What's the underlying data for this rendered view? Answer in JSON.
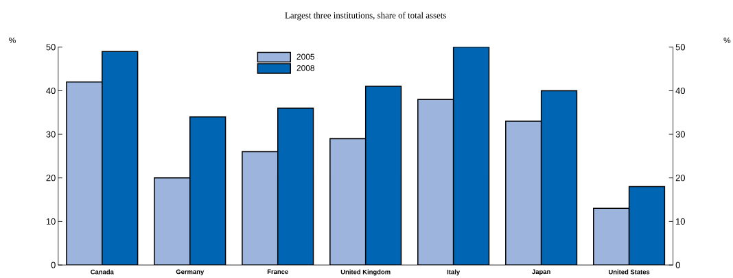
{
  "chart_data": {
    "type": "bar",
    "subtitle": "Largest three institutions, share of total assets",
    "ylabel": "%",
    "y2label": "%",
    "categories": [
      "Canada",
      "Germany",
      "France",
      "United Kingdom",
      "Italy",
      "Japan",
      "United States"
    ],
    "series": [
      {
        "name": "2005",
        "color": "#9db4dc",
        "values": [
          42,
          20,
          26,
          29,
          38,
          33,
          13
        ]
      },
      {
        "name": "2008",
        "color": "#0066b3",
        "values": [
          49,
          34,
          36,
          41,
          50,
          40,
          18
        ]
      }
    ],
    "ylim": [
      0,
      50
    ],
    "yticks": [
      0,
      10,
      20,
      30,
      40,
      50
    ],
    "y2lim": [
      0,
      50
    ],
    "y2ticks": [
      0,
      10,
      20,
      30,
      40,
      50
    ],
    "grid": false,
    "legend": "top"
  }
}
